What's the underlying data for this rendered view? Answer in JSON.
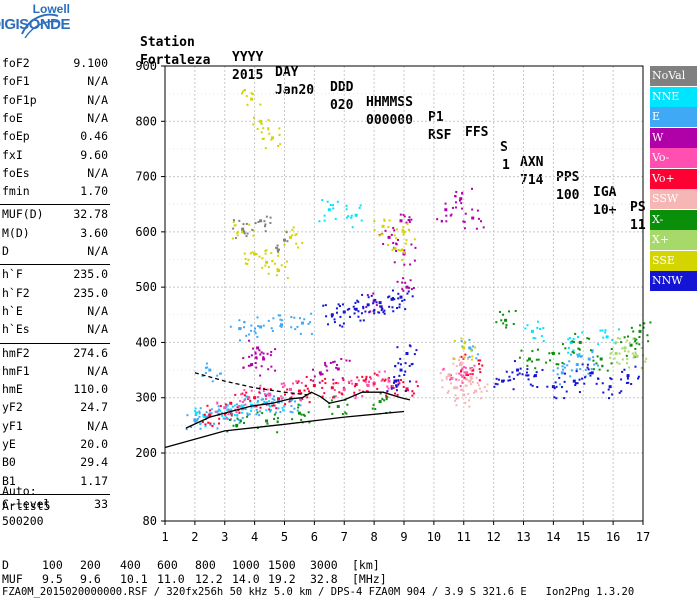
{
  "logo": {
    "top_text": "Lowell",
    "main_text": "DIGISONDE"
  },
  "header": {
    "labels": [
      "Station",
      "YYYY",
      "DAY",
      "DDD",
      "HHMMSS",
      "P1",
      "FFS",
      "S",
      "AXN",
      "PPS",
      "IGA",
      "PS"
    ],
    "values": [
      "Fortaleza",
      "2015",
      "Jan20",
      "020",
      "000000",
      "RSF",
      "",
      "1",
      "714",
      "100",
      "10+",
      "11"
    ]
  },
  "params": {
    "group1": [
      {
        "name": "foF2",
        "value": "9.100"
      },
      {
        "name": "foF1",
        "value": "N/A"
      },
      {
        "name": "foF1p",
        "value": "N/A"
      },
      {
        "name": "foE",
        "value": "N/A"
      },
      {
        "name": "foEp",
        "value": "0.46"
      },
      {
        "name": "fxI",
        "value": "9.60"
      },
      {
        "name": "foEs",
        "value": "N/A"
      },
      {
        "name": "fmin",
        "value": "1.70"
      }
    ],
    "group2": [
      {
        "name": "MUF(D)",
        "value": "32.78"
      },
      {
        "name": "M(D)",
        "value": "3.60"
      },
      {
        "name": "D",
        "value": "N/A"
      }
    ],
    "group3": [
      {
        "name": "h`F",
        "value": "235.0"
      },
      {
        "name": "h`F2",
        "value": "235.0"
      },
      {
        "name": "h`E",
        "value": "N/A"
      },
      {
        "name": "h`Es",
        "value": "N/A"
      }
    ],
    "group4": [
      {
        "name": "hmF2",
        "value": "274.6"
      },
      {
        "name": "hmF1",
        "value": "N/A"
      },
      {
        "name": "hmE",
        "value": "110.0"
      },
      {
        "name": "yF2",
        "value": "24.7"
      },
      {
        "name": "yF1",
        "value": "N/A"
      },
      {
        "name": "yE",
        "value": "20.0"
      },
      {
        "name": "B0",
        "value": "29.4"
      },
      {
        "name": "B1",
        "value": "1.17"
      }
    ],
    "group5": [
      {
        "name": "C-level",
        "value": "33"
      }
    ]
  },
  "autoscale": {
    "line1": "Auto:",
    "line2": "Artist5",
    "line3": "500200"
  },
  "legend": [
    {
      "label": "NoVal",
      "color": "#808080",
      "text_color": "#ffffff"
    },
    {
      "label": "NNE",
      "color": "#00e5ff",
      "text_color": "#ffffff"
    },
    {
      "label": "E",
      "color": "#3fa9f5",
      "text_color": "#ffffff"
    },
    {
      "label": "W",
      "color": "#b000a8",
      "text_color": "#ffffff"
    },
    {
      "label": "Vo-",
      "color": "#ff4fb0",
      "text_color": "#ffffff"
    },
    {
      "label": "Vo+",
      "color": "#ff0033",
      "text_color": "#ffffff"
    },
    {
      "label": "SSW",
      "color": "#f7b6b6",
      "text_color": "#ffffff"
    },
    {
      "label": "X-",
      "color": "#0a8f0a",
      "text_color": "#ffffff"
    },
    {
      "label": "X+",
      "color": "#a6d96a",
      "text_color": "#ffffff"
    },
    {
      "label": "SSE",
      "color": "#d4d400",
      "text_color": "#ffffff"
    },
    {
      "label": "NNW",
      "color": "#1414d4",
      "text_color": "#ffffff"
    }
  ],
  "footer": {
    "d_label": "D",
    "d_values": [
      "100",
      "200",
      "400",
      "600",
      "800",
      "1000",
      "1500",
      "3000",
      "[km]"
    ],
    "muf_label": "MUF",
    "muf_values": [
      "9.5",
      "9.6",
      "10.1",
      "11.0",
      "12.2",
      "14.0",
      "19.2",
      "32.8",
      "[MHz]"
    ],
    "info": "FZA0M_2015020000000.RSF / 320fx256h 50 kHz 5.0 km / DPS-4 FZA0M 904 / 3.9 S 321.6 E   Ion2Png 1.3.20"
  },
  "chart_data": {
    "type": "scatter",
    "title": "",
    "xlabel": "",
    "ylabel": "",
    "xlim": [
      1,
      17
    ],
    "ylim": [
      80,
      900
    ],
    "xticks": [
      1,
      2,
      3,
      4,
      5,
      6,
      7,
      8,
      9,
      10,
      11,
      12,
      13,
      14,
      15,
      16,
      17
    ],
    "yticks": [
      80,
      200,
      300,
      400,
      500,
      600,
      700,
      800,
      900
    ],
    "grid": true,
    "legend_position": "right",
    "series": [
      {
        "name": "E",
        "color": "#3fa9f5",
        "points": [
          [
            2.0,
            260
          ],
          [
            2.4,
            265
          ],
          [
            2.8,
            270
          ],
          [
            3.2,
            275
          ],
          [
            3.6,
            280
          ],
          [
            4.0,
            285
          ],
          [
            4.4,
            290
          ],
          [
            4.8,
            292
          ],
          [
            5.2,
            295
          ],
          [
            3.5,
            425
          ],
          [
            4.2,
            428
          ],
          [
            4.9,
            432
          ],
          [
            5.6,
            435
          ],
          [
            2.5,
            350
          ],
          [
            11.2,
            390
          ],
          [
            14.3,
            345
          ],
          [
            14.8,
            360
          ],
          [
            15.2,
            370
          ]
        ]
      },
      {
        "name": "NNE",
        "color": "#00e5ff",
        "points": [
          [
            2.3,
            268
          ],
          [
            3.1,
            278
          ],
          [
            3.9,
            286
          ],
          [
            4.6,
            291
          ],
          [
            6.5,
            640
          ],
          [
            7.4,
            630
          ],
          [
            13.3,
            420
          ],
          [
            14.6,
            400
          ],
          [
            15.8,
            410
          ]
        ]
      },
      {
        "name": "W",
        "color": "#b000a8",
        "points": [
          [
            3.9,
            360
          ],
          [
            4.1,
            390
          ],
          [
            4.3,
            370
          ],
          [
            6.2,
            345
          ],
          [
            6.8,
            352
          ],
          [
            8.0,
            475
          ],
          [
            8.5,
            590
          ],
          [
            8.9,
            620
          ],
          [
            9.0,
            560
          ],
          [
            9.1,
            500
          ],
          [
            10.4,
            640
          ],
          [
            10.9,
            660
          ],
          [
            11.3,
            625
          ]
        ]
      },
      {
        "name": "Vo+",
        "color": "#ff0033",
        "points": [
          [
            2.5,
            268
          ],
          [
            3.2,
            290
          ],
          [
            4.0,
            300
          ],
          [
            4.8,
            298
          ],
          [
            5.5,
            312
          ],
          [
            6.0,
            322
          ],
          [
            6.6,
            318
          ],
          [
            7.4,
            324
          ],
          [
            8.0,
            326
          ],
          [
            8.6,
            320
          ],
          [
            9.1,
            316
          ],
          [
            10.9,
            360
          ],
          [
            11.3,
            350
          ]
        ]
      },
      {
        "name": "Vo-",
        "color": "#ff4fb0",
        "points": [
          [
            3.0,
            282
          ],
          [
            3.8,
            300
          ],
          [
            4.5,
            305
          ],
          [
            5.2,
            315
          ],
          [
            7.0,
            315
          ],
          [
            7.8,
            322
          ],
          [
            8.5,
            330
          ],
          [
            10.6,
            335
          ],
          [
            11.1,
            345
          ]
        ]
      },
      {
        "name": "SSW",
        "color": "#f7b6b6",
        "points": [
          [
            10.5,
            340
          ],
          [
            10.9,
            360
          ],
          [
            11.2,
            330
          ],
          [
            11.4,
            312
          ],
          [
            11.0,
            305
          ],
          [
            10.7,
            318
          ]
        ]
      },
      {
        "name": "X-",
        "color": "#0a8f0a",
        "points": [
          [
            3.4,
            250
          ],
          [
            4.4,
            258
          ],
          [
            5.5,
            272
          ],
          [
            6.8,
            284
          ],
          [
            8.2,
            293
          ],
          [
            12.4,
            440
          ],
          [
            13.2,
            370
          ],
          [
            14.0,
            380
          ],
          [
            14.9,
            400
          ],
          [
            15.6,
            370
          ],
          [
            16.6,
            395
          ],
          [
            16.9,
            420
          ]
        ]
      },
      {
        "name": "X+",
        "color": "#a6d96a",
        "points": [
          [
            16.1,
            380
          ],
          [
            16.4,
            390
          ],
          [
            16.8,
            375
          ]
        ]
      },
      {
        "name": "SSE",
        "color": "#d4d400",
        "points": [
          [
            3.9,
            840
          ],
          [
            4.2,
            800
          ],
          [
            4.6,
            770
          ],
          [
            3.6,
            600
          ],
          [
            4.0,
            560
          ],
          [
            4.4,
            545
          ],
          [
            4.8,
            530
          ],
          [
            5.2,
            590
          ],
          [
            8.3,
            610
          ],
          [
            8.7,
            570
          ],
          [
            9.0,
            600
          ],
          [
            11.0,
            390
          ]
        ]
      },
      {
        "name": "NNW",
        "color": "#1414d4",
        "points": [
          [
            6.6,
            450
          ],
          [
            7.0,
            455
          ],
          [
            7.4,
            460
          ],
          [
            7.8,
            468
          ],
          [
            8.2,
            472
          ],
          [
            8.6,
            478
          ],
          [
            8.9,
            482
          ],
          [
            12.3,
            330
          ],
          [
            12.8,
            350
          ],
          [
            13.4,
            340
          ],
          [
            14.0,
            320
          ],
          [
            14.7,
            330
          ],
          [
            15.3,
            345
          ],
          [
            15.9,
            320
          ],
          [
            16.5,
            340
          ],
          [
            8.9,
            350
          ],
          [
            9.1,
            380
          ],
          [
            8.7,
            330
          ]
        ]
      },
      {
        "name": "NoVal",
        "color": "#808080",
        "points": [
          [
            3.6,
            605
          ],
          [
            4.2,
            620
          ],
          [
            5.0,
            585
          ]
        ]
      }
    ],
    "trace_profile": {
      "color": "#000000",
      "points": [
        [
          1.0,
          210
        ],
        [
          3.0,
          240
        ],
        [
          5.0,
          252
        ],
        [
          7.0,
          265
        ],
        [
          9.0,
          275
        ]
      ]
    },
    "trace_virtual": {
      "color": "#000000",
      "points": [
        [
          1.7,
          245
        ],
        [
          2.5,
          265
        ],
        [
          3.2,
          275
        ],
        [
          3.9,
          285
        ],
        [
          4.6,
          290
        ],
        [
          5.2,
          298
        ],
        [
          5.6,
          300
        ],
        [
          5.9,
          310
        ],
        [
          6.2,
          302
        ],
        [
          6.5,
          290
        ],
        [
          7.0,
          296
        ],
        [
          7.6,
          310
        ],
        [
          8.3,
          310
        ],
        [
          8.9,
          300
        ],
        [
          9.2,
          296
        ]
      ]
    },
    "trace_dashed": {
      "color": "#000000",
      "points": [
        [
          2.0,
          345
        ],
        [
          3.0,
          330
        ],
        [
          4.0,
          318
        ],
        [
          5.0,
          310
        ],
        [
          5.8,
          305
        ]
      ]
    }
  }
}
